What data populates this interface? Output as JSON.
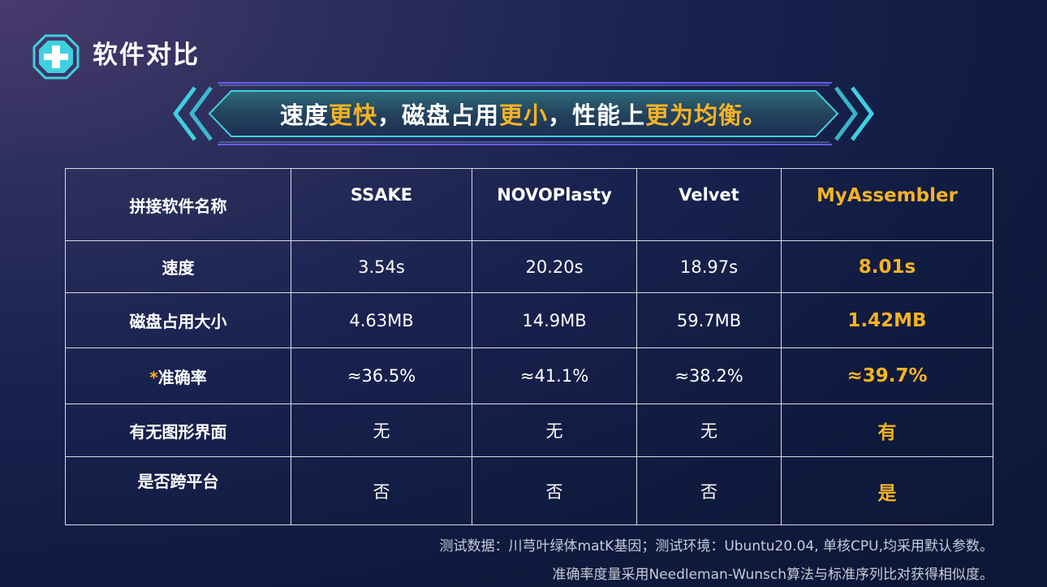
{
  "header": {
    "title": "软件对比"
  },
  "banner": {
    "seg1": "速度",
    "seg2": "更快",
    "seg3": "，磁盘占用",
    "seg4": "更小",
    "seg5": "，性能上",
    "seg6": "更为均衡",
    "seg7": "。"
  },
  "table": {
    "corner": "拼接软件名称",
    "columns": [
      "SSAKE",
      "NOVOPlasty",
      "Velvet",
      "MyAssembler"
    ],
    "rows": [
      {
        "label": "速度",
        "star": "",
        "values": [
          "3.54s",
          "20.20s",
          "18.97s",
          "8.01s"
        ]
      },
      {
        "label": "磁盘占用大小",
        "star": "",
        "values": [
          "4.63MB",
          "14.9MB",
          "59.7MB",
          "1.42MB"
        ]
      },
      {
        "label": "准确率",
        "star": "*",
        "values": [
          "≈36.5%",
          "≈41.1%",
          "≈38.2%",
          "≈39.7%"
        ]
      },
      {
        "label": "有无图形界面",
        "star": "",
        "values": [
          "无",
          "无",
          "无",
          "有"
        ]
      },
      {
        "label": "是否跨平台",
        "star": "",
        "values": [
          "否",
          "否",
          "否",
          "是"
        ]
      }
    ]
  },
  "notes": {
    "line1": "测试数据：川芎叶绿体matK基因；测试环境：Ubuntu20.04, 单核CPU,均采用默认参数。",
    "line2": "准确率度量采用Needleman-Wunsch算法与标准序列比对获得相似度。"
  },
  "colors": {
    "accent": "#f5b323",
    "banner_glow": "#3fd0e0",
    "banner_border": "#6a5cff"
  },
  "icons": {
    "logo": "medical-cross-icon",
    "banner_left": "double-chevron-left-icon",
    "banner_right": "double-chevron-right-icon"
  }
}
